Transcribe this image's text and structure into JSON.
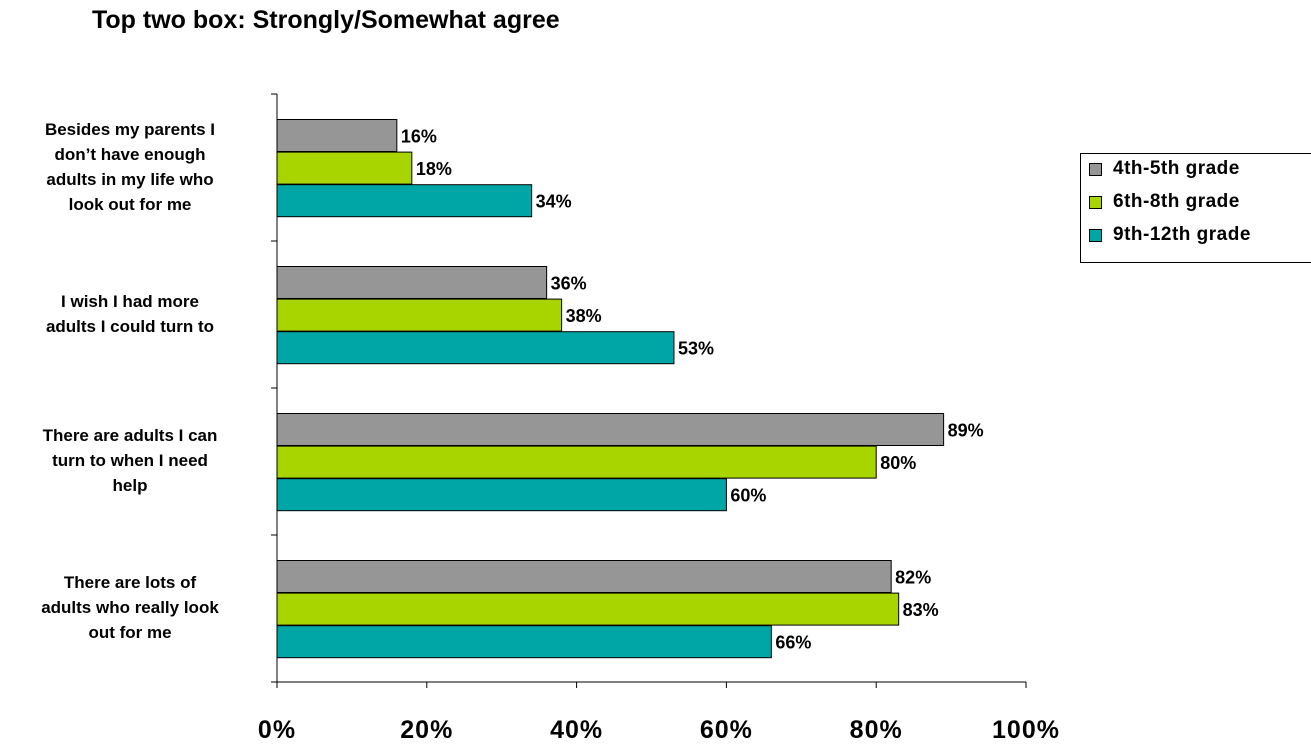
{
  "chart_data": {
    "type": "bar",
    "orientation": "horizontal",
    "title": "Top two box: Strongly/Somewhat agree",
    "categories": [
      "Besides my parents I don’t have enough adults in my life who look out for me",
      "I wish I had more adults I could turn to",
      "There are adults I can turn to when I need help",
      "There are lots of adults who really look out for me"
    ],
    "category_lines": [
      [
        "Besides my parents I",
        "don’t have enough",
        "adults in my life who",
        "look out for me"
      ],
      [
        "I wish I had more",
        "adults I could turn to"
      ],
      [
        "There are adults I can",
        "turn to when I need",
        "help"
      ],
      [
        "There are lots of",
        "adults who really look",
        "out for me"
      ]
    ],
    "series": [
      {
        "name": "4th-5th grade",
        "color": "#969696",
        "values": [
          16,
          36,
          89,
          82
        ],
        "labels": [
          "16%",
          "36%",
          "89%",
          "82%"
        ]
      },
      {
        "name": "6th-8th grade",
        "color": "#a8d400",
        "values": [
          18,
          38,
          80,
          83
        ],
        "labels": [
          "18%",
          "38%",
          "80%",
          "83%"
        ]
      },
      {
        "name": "9th-12th grade",
        "color": "#00a6a6",
        "values": [
          34,
          53,
          60,
          66
        ],
        "labels": [
          "34%",
          "53%",
          "60%",
          "66%"
        ]
      }
    ],
    "xlim": [
      0,
      100
    ],
    "xticks": [
      0,
      20,
      40,
      60,
      80,
      100
    ],
    "xtick_labels": [
      "0%",
      "20%",
      "40%",
      "60%",
      "80%",
      "100%"
    ],
    "grid": false,
    "legend_position": "right"
  }
}
